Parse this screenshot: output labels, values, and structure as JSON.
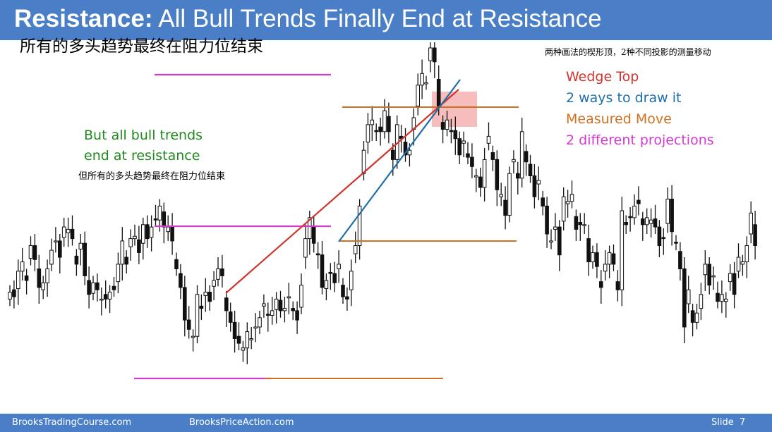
{
  "header": {
    "title_bold": "Resistance:",
    "title_rest": " All Bull Trends Finally End at Resistance",
    "subtitle_cn": "所有的多头趋势最终在阻力位结束"
  },
  "notes": {
    "top_right_cn": "两种画法的楔形顶，2种不同投影的测量移动",
    "green_line1": "But all bull trends",
    "green_line2": "end at resistance",
    "green_cn": "但所有的多头趋势最终在阻力位结束"
  },
  "legend": [
    {
      "text": "Wedge Top",
      "color": "#d0342c"
    },
    {
      "text": "2 ways to draw it",
      "color": "#1f6fa8"
    },
    {
      "text": "Measured Move",
      "color": "#d07020"
    },
    {
      "text": "2 different projections",
      "color": "#d23ad0"
    }
  ],
  "footer": {
    "left1": "BrooksTradingCourse.com",
    "left2": "BrooksPriceAction.com",
    "slide_label": "Slide",
    "slide_number": "7"
  },
  "chart_data": {
    "type": "candlestick",
    "colors": {
      "bull": "#ffffff",
      "bear": "#111111",
      "wedge_red": "#d0342c",
      "wedge_blue": "#1f6fa8",
      "measured_move": "#d07020",
      "resistance": "#d23ad0",
      "highlight": "#f4a5a5"
    },
    "closes": [
      35,
      33,
      44,
      48,
      40,
      55,
      49,
      37,
      39,
      45,
      53,
      57,
      50,
      63,
      62,
      58,
      47,
      56,
      42,
      34,
      39,
      36,
      32,
      32,
      35,
      36,
      47,
      57,
      47,
      58,
      59,
      52,
      64,
      58,
      63,
      66,
      72,
      63,
      63,
      57,
      45,
      37,
      23,
      19,
      16,
      34,
      28,
      35,
      31,
      40,
      45,
      42,
      27,
      22,
      15,
      13,
      11,
      18,
      15,
      20,
      24,
      30,
      25,
      27,
      32,
      27,
      28,
      33,
      27,
      23,
      38,
      58,
      67,
      56,
      51,
      37,
      40,
      43,
      39,
      47,
      33,
      32,
      44,
      55,
      72,
      96,
      107,
      109,
      104,
      104,
      113,
      104,
      92,
      107,
      101,
      94,
      96,
      110,
      124,
      129,
      125,
      140,
      134,
      115,
      105,
      109,
      104,
      101,
      94,
      100,
      93,
      89,
      85,
      80,
      92,
      102,
      92,
      79,
      77,
      68,
      86,
      92,
      84,
      104,
      91,
      85,
      76,
      83,
      72,
      60,
      57,
      63,
      51,
      76,
      74,
      77,
      62,
      64,
      64,
      48,
      52,
      46,
      37,
      47,
      52,
      47,
      36,
      70,
      64,
      67,
      72,
      73,
      64,
      67,
      66,
      63,
      55,
      58,
      75,
      61,
      56,
      45,
      20,
      36,
      22,
      26,
      34,
      47,
      38,
      42,
      31,
      34,
      32,
      43,
      34,
      50,
      48,
      55,
      69,
      55
    ],
    "annotations": [
      "wedge top (red line)",
      "wedge top (blue line)",
      "measured move projection (orange)",
      "resistance levels (magenta)"
    ]
  }
}
